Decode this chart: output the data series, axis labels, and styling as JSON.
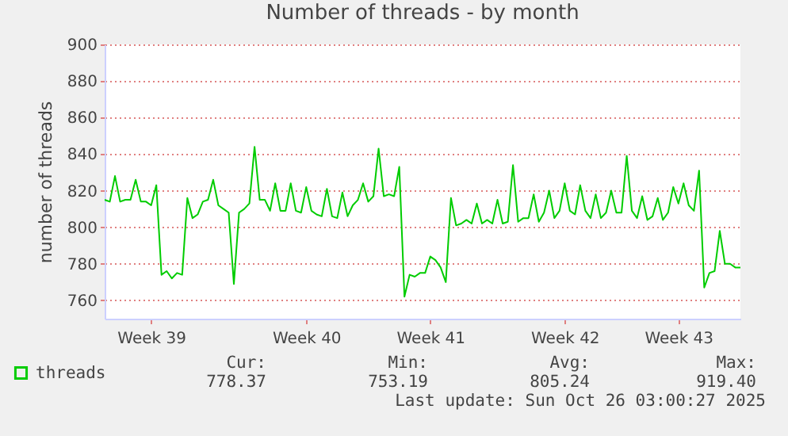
{
  "chart_data": {
    "type": "line",
    "title": "Number of threads - by month",
    "ylabel": "number of threads",
    "ylim": [
      750,
      900
    ],
    "categories": [
      null,
      null,
      null,
      null,
      null,
      null,
      null,
      null,
      null,
      "Week 39",
      null,
      null,
      null,
      null,
      null,
      null,
      null,
      null,
      null,
      null,
      null,
      null,
      null,
      null,
      null,
      null,
      null,
      null,
      null,
      null,
      null,
      null,
      null,
      null,
      null,
      null,
      null,
      null,
      null,
      "Week 40",
      null,
      null,
      null,
      null,
      null,
      null,
      null,
      null,
      null,
      null,
      null,
      null,
      null,
      null,
      null,
      null,
      null,
      null,
      null,
      null,
      null,
      null,
      null,
      "Week 41",
      null,
      null,
      null,
      null,
      null,
      null,
      null,
      null,
      null,
      null,
      null,
      null,
      null,
      null,
      null,
      null,
      null,
      null,
      null,
      null,
      null,
      null,
      null,
      null,
      null,
      "Week 42",
      null,
      null,
      null,
      null,
      null,
      null,
      null,
      null,
      null,
      null,
      null,
      null,
      null,
      null,
      null,
      null,
      null,
      null,
      null,
      null,
      null,
      "Week 43",
      null,
      null,
      null,
      null,
      null,
      null,
      null,
      null,
      null,
      null,
      null,
      null
    ],
    "yticks": [
      760,
      780,
      800,
      820,
      840,
      860,
      880,
      900
    ],
    "grid": "y",
    "legend": "bottom",
    "annotations": [
      "Cur:",
      "778.37",
      "Min:",
      "753.19",
      "Avg:",
      "805.24",
      "Max:",
      "919.40",
      "Last update: Sun Oct 26 03:00:27 2025"
    ],
    "series": [
      {
        "name": "threads",
        "color": "#00cc00",
        "values": [
          815,
          814,
          828,
          814,
          815,
          815,
          826,
          814,
          814,
          812,
          823,
          774,
          776,
          772,
          775,
          774,
          816,
          805,
          807,
          814,
          815,
          826,
          812,
          810,
          808,
          769,
          808,
          810,
          813,
          844,
          815,
          815,
          809,
          824,
          809,
          809,
          824,
          809,
          808,
          822,
          809,
          807,
          806,
          821,
          806,
          805,
          819,
          806,
          812,
          815,
          824,
          814,
          817,
          843,
          817,
          818,
          817,
          833,
          762,
          774,
          773,
          775,
          775,
          784,
          782,
          778,
          770,
          816,
          801,
          802,
          804,
          802,
          813,
          802,
          804,
          802,
          815,
          802,
          803,
          834,
          803,
          805,
          805,
          818,
          803,
          808,
          820,
          805,
          809,
          824,
          809,
          807,
          823,
          809,
          805,
          818,
          805,
          808,
          820,
          808,
          808,
          839,
          809,
          805,
          817,
          804,
          806,
          816,
          804,
          808,
          822,
          813,
          824,
          812,
          809,
          831,
          767,
          775,
          776,
          798,
          780,
          780,
          778,
          778
        ]
      }
    ]
  }
}
